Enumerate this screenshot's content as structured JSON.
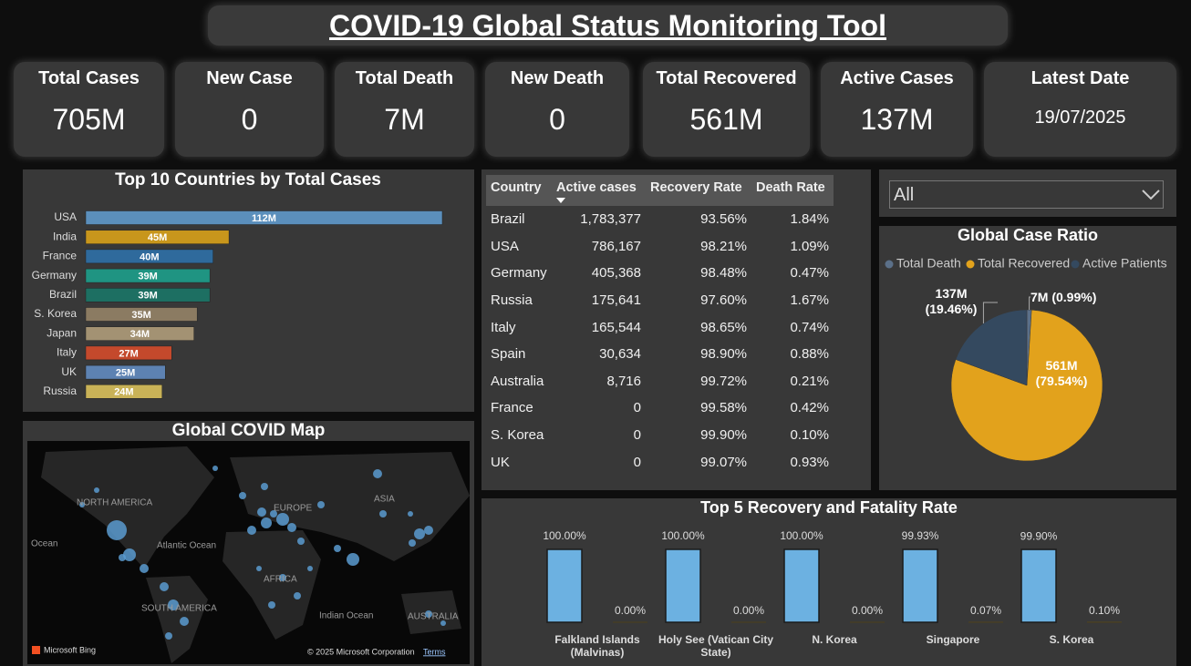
{
  "header": {
    "title": "COVID-19 Global Status Monitoring Tool"
  },
  "kpis": [
    {
      "label": "Total Cases",
      "value": "705M"
    },
    {
      "label": "New Case",
      "value": "0"
    },
    {
      "label": "Total Death",
      "value": "7M"
    },
    {
      "label": "New Death",
      "value": "0"
    },
    {
      "label": "Total Recovered",
      "value": "561M"
    },
    {
      "label": "Active Cases",
      "value": "137M"
    },
    {
      "label": "Latest Date",
      "value": "19/07/2025"
    }
  ],
  "filter": {
    "selected": "All"
  },
  "table": {
    "columns": [
      "Country",
      "Active cases",
      "Recovery Rate",
      "Death Rate"
    ],
    "rows": [
      [
        "Brazil",
        "1,783,377",
        "93.56%",
        "1.84%"
      ],
      [
        "USA",
        "786,167",
        "98.21%",
        "1.09%"
      ],
      [
        "Germany",
        "405,368",
        "98.48%",
        "0.47%"
      ],
      [
        "Russia",
        "175,641",
        "97.60%",
        "1.67%"
      ],
      [
        "Italy",
        "165,544",
        "98.65%",
        "0.74%"
      ],
      [
        "Spain",
        "30,634",
        "98.90%",
        "0.88%"
      ],
      [
        "Australia",
        "8,716",
        "99.72%",
        "0.21%"
      ],
      [
        "France",
        "0",
        "99.58%",
        "0.42%"
      ],
      [
        "S. Korea",
        "0",
        "99.90%",
        "0.10%"
      ],
      [
        "UK",
        "0",
        "99.07%",
        "0.93%"
      ]
    ]
  },
  "map": {
    "title": "Global COVID Map",
    "labels": [
      "NORTH AMERICA",
      "EUROPE",
      "ASIA",
      "Ocean",
      "Atlantic Ocean",
      "AFRICA",
      "SOUTH AMERICA",
      "Indian Ocean",
      "AUSTRALIA"
    ],
    "logo": "Microsoft Bing",
    "attribution": "© 2025 Microsoft Corporation",
    "terms": "Terms"
  },
  "chart_data": [
    {
      "type": "bar",
      "orientation": "horizontal",
      "title": "Top 10 Countries by Total Cases",
      "categories": [
        "USA",
        "India",
        "France",
        "Germany",
        "Brazil",
        "S. Korea",
        "Japan",
        "Italy",
        "UK",
        "Russia"
      ],
      "values": [
        112,
        45,
        40,
        39,
        39,
        35,
        34,
        27,
        25,
        24
      ],
      "value_labels": [
        "112M",
        "45M",
        "40M",
        "39M",
        "39M",
        "35M",
        "34M",
        "27M",
        "25M",
        "24M"
      ],
      "colors": [
        "#5b8fbc",
        "#c8961c",
        "#2f6a9c",
        "#1f9482",
        "#1d6f62",
        "#8b7b62",
        "#a39273",
        "#c4492c",
        "#5d82b2",
        "#c9b257"
      ]
    },
    {
      "type": "pie",
      "title": "Global Case Ratio",
      "categories": [
        "Total Death",
        "Total Recovered",
        "Active Patients"
      ],
      "values": [
        7,
        561,
        137
      ],
      "value_labels": [
        "7M (0.99%)",
        "561M (79.54%)",
        "137M (19.46%)"
      ],
      "colors": [
        "#5b7089",
        "#e2a21c",
        "#34495f"
      ]
    },
    {
      "type": "bar",
      "title": "Top 5 Recovery and Fatality Rate",
      "categories": [
        "Falkland Islands (Malvinas)",
        "Holy See (Vatican City State)",
        "N. Korea",
        "Singapore",
        "S. Korea"
      ],
      "series": [
        {
          "color": "#6cb1e1",
          "values": [
            100,
            100,
            100,
            99.93,
            99.9
          ],
          "value_labels": [
            "100.00%",
            "100.00%",
            "100.00%",
            "99.93%",
            "99.90%"
          ]
        },
        {
          "color": "#a07a1c",
          "values": [
            0,
            0,
            0,
            0.07,
            0.1
          ],
          "value_labels": [
            "0.00%",
            "0.00%",
            "0.00%",
            "0.07%",
            "0.10%"
          ]
        }
      ]
    }
  ]
}
